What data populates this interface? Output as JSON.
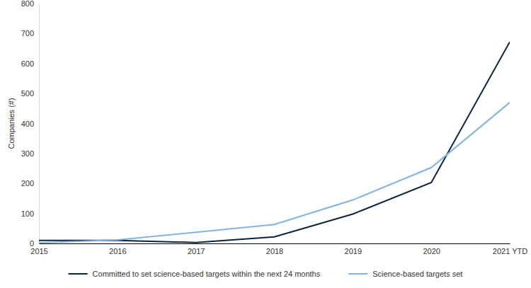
{
  "chart_data": {
    "type": "line",
    "y_label": "Companies (#)",
    "categories": [
      "2015",
      "2016",
      "2017",
      "2018",
      "2019",
      "2020",
      "2021 YTD"
    ],
    "series": [
      {
        "name": "Committed to set science-based targets within the next 24 months",
        "color": "#0c2340",
        "values": [
          10,
          10,
          3,
          22,
          98,
          203,
          672
        ]
      },
      {
        "name": "Science-based targets set",
        "color": "#7fb3e6",
        "values": [
          2,
          12,
          37,
          63,
          145,
          253,
          470
        ]
      }
    ],
    "ylim": [
      0,
      800
    ],
    "yticks": [
      0,
      100,
      200,
      300,
      400,
      500,
      600,
      700,
      800
    ],
    "grid": false,
    "legend": "bottom"
  }
}
